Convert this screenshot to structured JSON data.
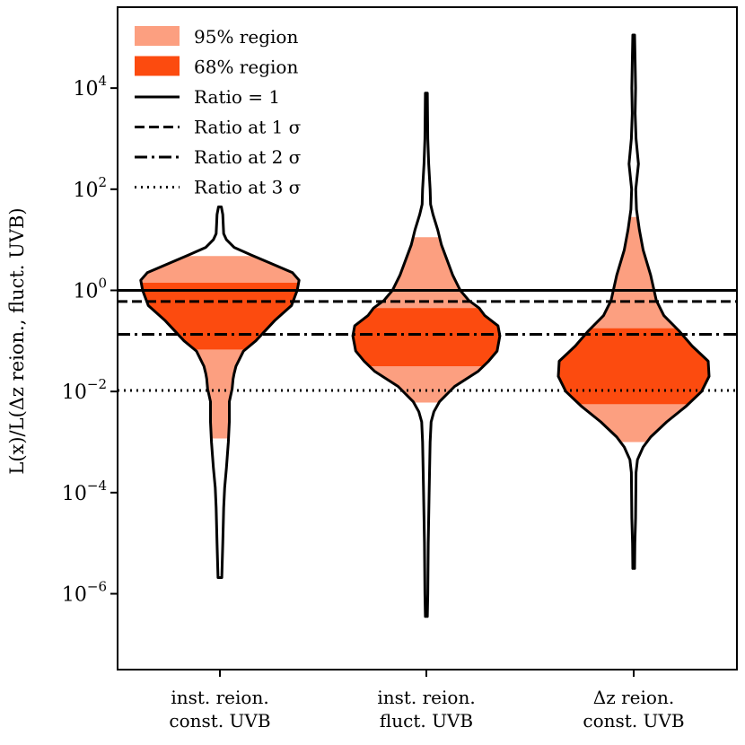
{
  "chart_data": {
    "type": "violin",
    "ylabel": "L(x)/L(Δz reion., fluct. UVB)",
    "yscale": "log",
    "ylim_log10": [
      -7.5,
      5.6
    ],
    "yticks": [
      {
        "exp": -6,
        "label_base": "10",
        "label_exp": "−6"
      },
      {
        "exp": -4,
        "label_base": "10",
        "label_exp": "−4"
      },
      {
        "exp": -2,
        "label_base": "10",
        "label_exp": "−2"
      },
      {
        "exp": 0,
        "label_base": "10",
        "label_exp": "0"
      },
      {
        "exp": 2,
        "label_base": "10",
        "label_exp": "2"
      },
      {
        "exp": 4,
        "label_base": "10",
        "label_exp": "4"
      }
    ],
    "categories": [
      {
        "line1": "inst. reion.",
        "line2": "const. UVB"
      },
      {
        "line1": "inst. reion.",
        "line2": "fluct. UVB"
      },
      {
        "line1": "Δz reion.",
        "line2": "const. UVB"
      }
    ],
    "reference_lines": [
      {
        "name": "Ratio = 1",
        "log10": 0.0,
        "style": "solid"
      },
      {
        "name": "Ratio at 1 σ",
        "log10": -0.22,
        "style": "dashed"
      },
      {
        "name": "Ratio at 2 σ",
        "log10": -0.87,
        "style": "dashdot"
      },
      {
        "name": "Ratio at 3 σ",
        "log10": -1.98,
        "style": "dotted"
      }
    ],
    "violins": [
      {
        "category": "inst. reion. const. UVB",
        "min_log10": -5.68,
        "max_log10": 1.65,
        "r68_log10": [
          -1.17,
          0.15
        ],
        "r95_log10": [
          -2.93,
          0.68
        ],
        "profile": [
          [
            -5.68,
            0.02
          ],
          [
            -5.0,
            0.03
          ],
          [
            -4.3,
            0.04
          ],
          [
            -3.9,
            0.05
          ],
          [
            -3.5,
            0.07
          ],
          [
            -3.0,
            0.09
          ],
          [
            -2.6,
            0.1
          ],
          [
            -2.2,
            0.1
          ],
          [
            -1.95,
            0.13
          ],
          [
            -1.75,
            0.14
          ],
          [
            -1.65,
            0.15
          ],
          [
            -1.5,
            0.17
          ],
          [
            -1.2,
            0.25
          ],
          [
            -1.0,
            0.38
          ],
          [
            -0.6,
            0.58
          ],
          [
            -0.3,
            0.76
          ],
          [
            0.0,
            0.82
          ],
          [
            0.2,
            0.84
          ],
          [
            0.35,
            0.77
          ],
          [
            0.55,
            0.52
          ],
          [
            0.7,
            0.33
          ],
          [
            0.85,
            0.15
          ],
          [
            1.0,
            0.07
          ],
          [
            1.12,
            0.04
          ],
          [
            1.3,
            0.035
          ],
          [
            1.5,
            0.03
          ],
          [
            1.65,
            0.015
          ]
        ]
      },
      {
        "category": "inst. reion. fluct. UVB",
        "min_log10": -6.45,
        "max_log10": 3.9,
        "r68_log10": [
          -1.5,
          -0.35
        ],
        "r95_log10": [
          -2.22,
          1.05
        ],
        "profile": [
          [
            -6.45,
            0.01
          ],
          [
            -6.0,
            0.015
          ],
          [
            -5.0,
            0.02
          ],
          [
            -4.0,
            0.03
          ],
          [
            -3.0,
            0.04
          ],
          [
            -2.6,
            0.05
          ],
          [
            -2.4,
            0.08
          ],
          [
            -2.2,
            0.14
          ],
          [
            -1.9,
            0.3
          ],
          [
            -1.6,
            0.55
          ],
          [
            -1.4,
            0.66
          ],
          [
            -1.2,
            0.75
          ],
          [
            -0.9,
            0.78
          ],
          [
            -0.7,
            0.76
          ],
          [
            -0.5,
            0.62
          ],
          [
            -0.35,
            0.56
          ],
          [
            -0.2,
            0.45
          ],
          [
            0.0,
            0.36
          ],
          [
            0.3,
            0.28
          ],
          [
            0.6,
            0.22
          ],
          [
            0.9,
            0.16
          ],
          [
            1.2,
            0.12
          ],
          [
            1.5,
            0.07
          ],
          [
            1.7,
            0.045
          ],
          [
            2.0,
            0.04
          ],
          [
            2.5,
            0.025
          ],
          [
            3.0,
            0.015
          ],
          [
            3.9,
            0.01
          ]
        ]
      },
      {
        "category": "Δz reion. const. UVB",
        "min_log10": -5.5,
        "max_log10": 5.05,
        "r68_log10": [
          -2.25,
          -0.75
        ],
        "r95_log10": [
          -3.0,
          1.45
        ],
        "profile": [
          [
            -5.5,
            0.01
          ],
          [
            -5.0,
            0.012
          ],
          [
            -4.5,
            0.02
          ],
          [
            -3.6,
            0.025
          ],
          [
            -3.35,
            0.04
          ],
          [
            -3.1,
            0.1
          ],
          [
            -2.9,
            0.18
          ],
          [
            -2.6,
            0.35
          ],
          [
            -2.3,
            0.55
          ],
          [
            -2.0,
            0.72
          ],
          [
            -1.7,
            0.8
          ],
          [
            -1.4,
            0.79
          ],
          [
            -1.1,
            0.62
          ],
          [
            -0.8,
            0.48
          ],
          [
            -0.5,
            0.32
          ],
          [
            -0.2,
            0.24
          ],
          [
            0.3,
            0.18
          ],
          [
            0.8,
            0.1
          ],
          [
            1.2,
            0.06
          ],
          [
            1.6,
            0.03
          ],
          [
            2.0,
            0.022
          ],
          [
            2.5,
            0.05
          ],
          [
            3.0,
            0.025
          ],
          [
            3.5,
            0.015
          ],
          [
            4.0,
            0.02
          ],
          [
            4.5,
            0.015
          ],
          [
            5.05,
            0.01
          ]
        ]
      }
    ],
    "legend": [
      {
        "label": "95% region",
        "kind": "patch",
        "color": "#fc9f80"
      },
      {
        "label": "68% region",
        "kind": "patch",
        "color": "#fc4b0f"
      },
      {
        "label": "Ratio = 1",
        "kind": "line",
        "style": "solid"
      },
      {
        "label": "Ratio at 1 σ",
        "kind": "line",
        "style": "dashed"
      },
      {
        "label": "Ratio at 2 σ",
        "kind": "line",
        "style": "dashdot"
      },
      {
        "label": "Ratio at 3 σ",
        "kind": "line",
        "style": "dotted"
      }
    ],
    "colors": {
      "r95": "#fc9f80",
      "r68": "#fc4b0f",
      "outline": "#000000"
    }
  }
}
